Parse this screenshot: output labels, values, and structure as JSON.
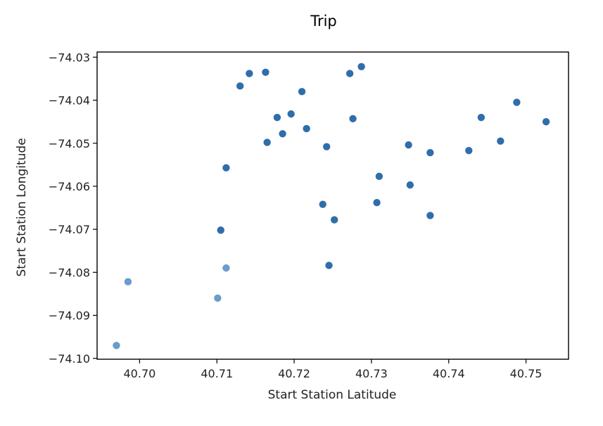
{
  "chart_data": {
    "type": "scatter",
    "title": "Trip",
    "xlabel": "Start Station Latitude",
    "ylabel": "Start Station Longitude",
    "xlim": [
      40.6945,
      40.7555
    ],
    "ylim": [
      -74.1002,
      -74.0288
    ],
    "xticks": [
      40.7,
      40.71,
      40.72,
      40.73,
      40.74,
      40.75
    ],
    "xtick_labels": [
      "40.70",
      "40.71",
      "40.72",
      "40.73",
      "40.74",
      "40.75"
    ],
    "yticks": [
      -74.1,
      -74.09,
      -74.08,
      -74.07,
      -74.06,
      -74.05,
      -74.04,
      -74.03
    ],
    "ytick_labels": [
      "−74.10",
      "−74.09",
      "−74.08",
      "−74.07",
      "−74.06",
      "−74.05",
      "−74.04",
      "−74.03"
    ],
    "grid": false,
    "colors": {
      "point": "#2f6eaa",
      "point_light": "#6a9ccc"
    },
    "points": [
      {
        "x": 40.697,
        "y": -74.097,
        "light": true
      },
      {
        "x": 40.6985,
        "y": -74.0822,
        "light": true
      },
      {
        "x": 40.7101,
        "y": -74.086,
        "light": true
      },
      {
        "x": 40.7112,
        "y": -74.079,
        "light": true
      },
      {
        "x": 40.7105,
        "y": -74.0702,
        "light": false
      },
      {
        "x": 40.7112,
        "y": -74.0557,
        "light": false
      },
      {
        "x": 40.713,
        "y": -74.0367,
        "light": false
      },
      {
        "x": 40.7142,
        "y": -74.0338,
        "light": false
      },
      {
        "x": 40.7163,
        "y": -74.0335,
        "light": false
      },
      {
        "x": 40.7165,
        "y": -74.0498,
        "light": false
      },
      {
        "x": 40.7178,
        "y": -74.044,
        "light": false
      },
      {
        "x": 40.7185,
        "y": -74.0478,
        "light": false
      },
      {
        "x": 40.7196,
        "y": -74.0432,
        "light": false
      },
      {
        "x": 40.721,
        "y": -74.038,
        "light": false
      },
      {
        "x": 40.7216,
        "y": -74.0466,
        "light": false
      },
      {
        "x": 40.7237,
        "y": -74.0642,
        "light": false
      },
      {
        "x": 40.7242,
        "y": -74.0508,
        "light": false
      },
      {
        "x": 40.7245,
        "y": -74.0784,
        "light": false
      },
      {
        "x": 40.7252,
        "y": -74.0678,
        "light": false
      },
      {
        "x": 40.7272,
        "y": -74.0338,
        "light": false
      },
      {
        "x": 40.7276,
        "y": -74.0443,
        "light": false
      },
      {
        "x": 40.7287,
        "y": -74.0322,
        "light": false
      },
      {
        "x": 40.7307,
        "y": -74.0638,
        "light": false
      },
      {
        "x": 40.731,
        "y": -74.0577,
        "light": false
      },
      {
        "x": 40.7348,
        "y": -74.0504,
        "light": false
      },
      {
        "x": 40.735,
        "y": -74.0597,
        "light": false
      },
      {
        "x": 40.7376,
        "y": -74.0522,
        "light": false
      },
      {
        "x": 40.7376,
        "y": -74.0668,
        "light": false
      },
      {
        "x": 40.7426,
        "y": -74.0517,
        "light": false
      },
      {
        "x": 40.7442,
        "y": -74.044,
        "light": false
      },
      {
        "x": 40.7467,
        "y": -74.0495,
        "light": false
      },
      {
        "x": 40.7488,
        "y": -74.0405,
        "light": false
      },
      {
        "x": 40.7526,
        "y": -74.045,
        "light": false
      }
    ]
  }
}
